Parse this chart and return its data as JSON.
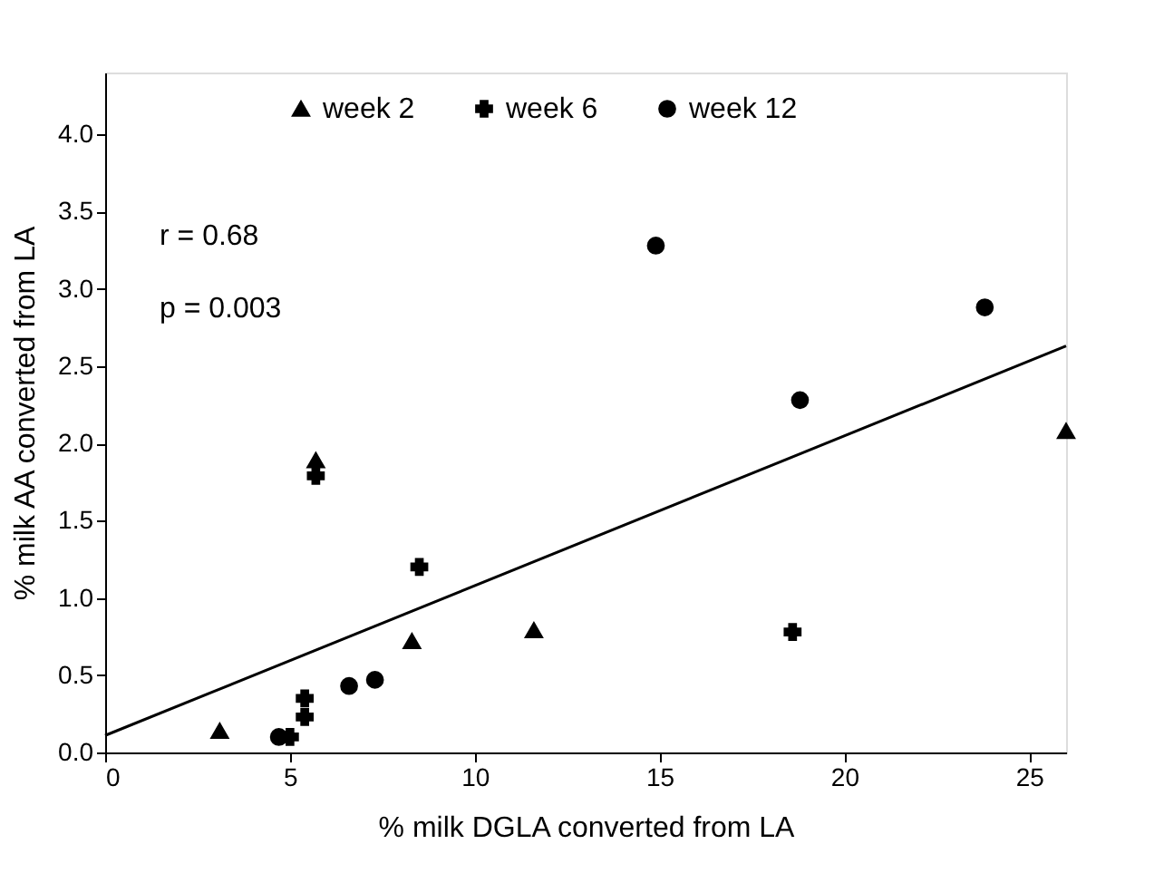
{
  "chart_data": {
    "type": "scatter",
    "xlabel": "% milk DGLA converted from LA",
    "ylabel": "% milk AA converted from LA",
    "xlim": [
      0,
      26
    ],
    "ylim": [
      0,
      4.4
    ],
    "xticks": [
      0,
      5,
      10,
      15,
      20,
      25
    ],
    "yticks": [
      {
        "value": 0,
        "label": "0.0"
      },
      0.5,
      {
        "value": 1,
        "label": "1.0"
      },
      1.5,
      {
        "value": 2,
        "label": "2.0"
      },
      2.5,
      {
        "value": 3,
        "label": "3.0"
      },
      3.5,
      {
        "value": 4,
        "label": "4.0"
      }
    ],
    "grid": false,
    "legend": "top",
    "annotations": [
      "r  = 0.68",
      "p = 0.003"
    ],
    "series": [
      {
        "name": "week 2",
        "color": "#000000",
        "marker": "triangle",
        "x": [
          3.1,
          5.7,
          8.3,
          11.6,
          26.0
        ],
        "values": [
          0.14,
          1.89,
          0.72,
          0.79,
          2.08
        ]
      },
      {
        "name": "week 6",
        "color": "#000000",
        "marker": "cross",
        "x": [
          5.7,
          8.5,
          5.4,
          5.4,
          5.0,
          18.6
        ],
        "values": [
          1.79,
          1.2,
          0.35,
          0.23,
          0.1,
          0.78
        ]
      },
      {
        "name": "week 12",
        "color": "#000000",
        "marker": "circle",
        "x": [
          4.7,
          6.6,
          7.3,
          14.9,
          18.8,
          23.8
        ],
        "values": [
          0.1,
          0.43,
          0.47,
          3.28,
          2.28,
          2.88
        ]
      },
      {
        "type": "line",
        "color": "#000000",
        "marker": "none",
        "line_style": "solid",
        "x": [
          0,
          26
        ],
        "values": [
          0.11,
          2.63
        ]
      }
    ]
  }
}
